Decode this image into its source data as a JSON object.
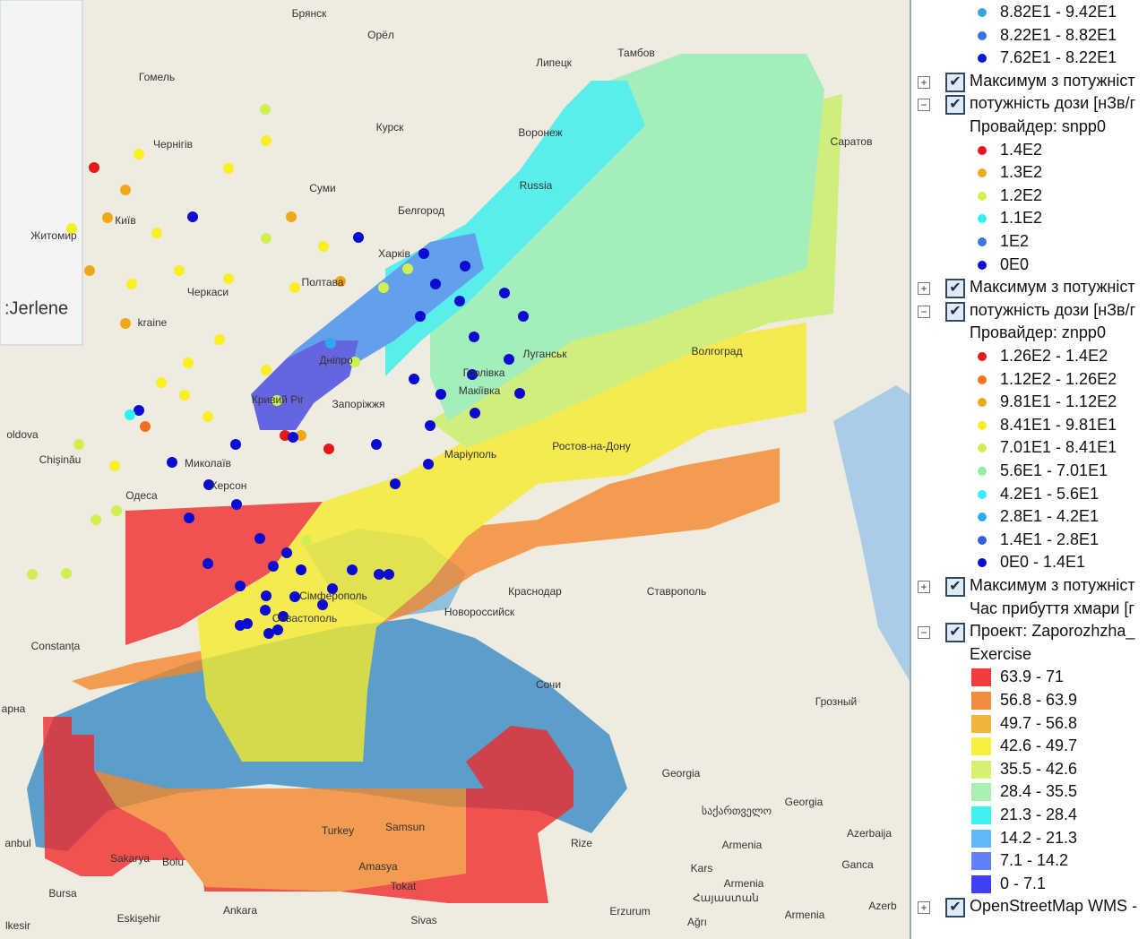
{
  "map": {
    "labels": [
      "Брянск",
      "Орёл",
      "Гомель",
      "Липецк",
      "Тамбов",
      "Курск",
      "Воронеж",
      "Чернігів",
      "Саратов",
      "Суми",
      "Russia",
      "Київ",
      "Белгород",
      "Житомир",
      "Харків",
      "Полтава",
      "Черкаси",
      "kraine",
      "Луганськ",
      "Дніпро",
      "Волгоград",
      "Горлівка",
      "Макіївка",
      "Кривий Ріг",
      "Запоріжжя",
      "oldova",
      "Ростов-на-Дону",
      "Маріуполь",
      "Chişinău",
      "Миколаїв",
      "Херсон",
      "Одеса",
      "Краснодар",
      "Ставрополь",
      "Сімферополь",
      "Севастополь",
      "Новороссийск",
      "Constanța",
      "Сочи",
      "Грозный",
      "арна",
      "Georgia",
      "საქართველო",
      "Georgia",
      "Azerbaija",
      "Turkey",
      "Samsun",
      "Rize",
      "Armenia",
      "Kars",
      "Ganca",
      "Armenia",
      "Հայաստան",
      "Armenia",
      "Azerb",
      "anbul",
      "Sakarya",
      "Bolu",
      "Amasya",
      "Tokat",
      "Bursa",
      "Ankara",
      "Eskişehir",
      "Sivas",
      "Erzurum",
      "Ağrı",
      "lkesir"
    ],
    "overlay_label": ":Jerlene"
  },
  "panel": {
    "top_items": [
      {
        "label": "8.82E1 - 9.42E1",
        "color": "#3aa0e8"
      },
      {
        "label": "8.22E1 - 8.82E1",
        "color": "#3b6fe0"
      },
      {
        "label": "7.62E1 - 8.22E1",
        "color": "#0a14d6"
      }
    ],
    "layers": [
      {
        "lines": [
          "Максимум з потужніст"
        ],
        "items": []
      },
      {
        "lines": [
          "потужність дози [нЗв/г",
          "Провайдер: snpp0"
        ],
        "items": [
          {
            "label": "1.4E2",
            "color": "#e8141e"
          },
          {
            "label": "1.3E2",
            "color": "#f0a820"
          },
          {
            "label": "1.2E2",
            "color": "#d8ee50"
          },
          {
            "label": "1.1E2",
            "color": "#30f0f0"
          },
          {
            "label": "1E2",
            "color": "#3c78e0"
          },
          {
            "label": "0E0",
            "color": "#0a0ad0"
          }
        ]
      },
      {
        "lines": [
          "Максимум з потужніст"
        ],
        "items": []
      },
      {
        "lines": [
          "потужність дози [нЗв/г",
          "Провайдер: znpp0"
        ],
        "items": [
          {
            "label": "1.26E2 - 1.4E2",
            "color": "#e81818"
          },
          {
            "label": "1.12E2 - 1.26E2",
            "color": "#f07020"
          },
          {
            "label": "9.81E1 - 1.12E2",
            "color": "#f0a818"
          },
          {
            "label": "8.41E1 - 9.81E1",
            "color": "#f8f020"
          },
          {
            "label": "7.01E1 - 8.41E1",
            "color": "#d0f050"
          },
          {
            "label": "5.6E1 - 7.01E1",
            "color": "#90f0a0"
          },
          {
            "label": "4.2E1 - 5.6E1",
            "color": "#30f0f0"
          },
          {
            "label": "2.8E1 - 4.2E1",
            "color": "#30a8f0"
          },
          {
            "label": "1.4E1 - 2.8E1",
            "color": "#3060e0"
          },
          {
            "label": "0E0 - 1.4E1",
            "color": "#0a0ad0"
          }
        ]
      },
      {
        "lines": [
          "Максимум з потужніст",
          "Час прибуття хмари [г"
        ],
        "items": []
      },
      {
        "lines": [
          "Проект: Zaporozhzha_",
          "Exercise"
        ],
        "square": true,
        "items": [
          {
            "label": "63.9 - 71",
            "color": "#f03c3c"
          },
          {
            "label": "56.8 - 63.9",
            "color": "#f08c3c"
          },
          {
            "label": "49.7 - 56.8",
            "color": "#f0b43c"
          },
          {
            "label": "42.6 - 49.7",
            "color": "#f8f040"
          },
          {
            "label": "35.5 - 42.6",
            "color": "#d8f070"
          },
          {
            "label": "28.4 - 35.5",
            "color": "#a8f0b0"
          },
          {
            "label": "21.3 - 28.4",
            "color": "#40f0f0"
          },
          {
            "label": "14.2 - 21.3",
            "color": "#60b8f8"
          },
          {
            "label": "7.1 - 14.2",
            "color": "#6080f8"
          },
          {
            "label": "0 - 7.1",
            "color": "#4040f8"
          }
        ]
      },
      {
        "lines": [
          "OpenStreetMap WMS -"
        ],
        "items": []
      }
    ]
  }
}
